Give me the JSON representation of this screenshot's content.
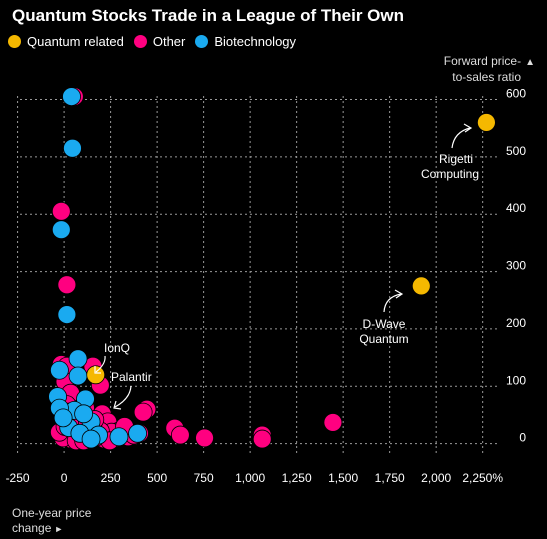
{
  "title": "Quantum Stocks Trade in a League of Their Own",
  "legend": [
    {
      "label": "Quantum related",
      "color": "#f5b800"
    },
    {
      "label": "Other",
      "color": "#ff0080"
    },
    {
      "label": "Biotechnology",
      "color": "#1aaaf0"
    }
  ],
  "y_title_line1": "Forward price-",
  "y_title_line2": "to-sales ratio",
  "y_title_arrow": "▲",
  "x_title_line1": "One-year price",
  "x_title_line2": "change",
  "x_title_arrow": "►",
  "chart_data": {
    "type": "scatter",
    "title": "Quantum Stocks Trade in a League of Their Own",
    "xlabel": "One-year price change",
    "ylabel": "Forward price-to-sales ratio",
    "xlim": [
      -280,
      2370
    ],
    "ylim": [
      -25,
      620
    ],
    "x_ticks": [
      -250,
      0,
      250,
      500,
      750,
      1000,
      1250,
      1500,
      1750,
      2000,
      2250
    ],
    "x_tick_labels": [
      "-250",
      "0",
      "250",
      "500",
      "750",
      "1,000",
      "1,250",
      "1,500",
      "1,750",
      "2,000",
      "2,250%"
    ],
    "y_ticks": [
      0,
      100,
      200,
      300,
      400,
      500,
      600
    ],
    "y_tick_labels": [
      "0",
      "100",
      "200",
      "300",
      "400",
      "500",
      "600"
    ],
    "grid": true,
    "series": [
      {
        "name": "Quantum related",
        "color": "#f5b800",
        "points": [
          {
            "x": 2270,
            "y": 560,
            "label": "Rigetti Computing"
          },
          {
            "x": 1920,
            "y": 275,
            "label": "D-Wave Quantum"
          },
          {
            "x": 170,
            "y": 120,
            "label": "IonQ"
          }
        ]
      },
      {
        "name": "Other",
        "color": "#ff0080",
        "points": [
          {
            "x": 55,
            "y": 605
          },
          {
            "x": -15,
            "y": 405
          },
          {
            "x": 15,
            "y": 277
          },
          {
            "x": -15,
            "y": 138
          },
          {
            "x": 15,
            "y": 135
          },
          {
            "x": 155,
            "y": 135
          },
          {
            "x": 5,
            "y": 108
          },
          {
            "x": 195,
            "y": 102
          },
          {
            "x": 35,
            "y": 88
          },
          {
            "x": 15,
            "y": 68
          },
          {
            "x": 115,
            "y": 62
          },
          {
            "x": 205,
            "y": 52
          },
          {
            "x": 235,
            "y": 38
          },
          {
            "x": 445,
            "y": 60
          },
          {
            "x": 425,
            "y": 55
          },
          {
            "x": 595,
            "y": 27
          },
          {
            "x": 625,
            "y": 15
          },
          {
            "x": 755,
            "y": 10
          },
          {
            "x": 1065,
            "y": 15
          },
          {
            "x": 1065,
            "y": 8
          },
          {
            "x": 1445,
            "y": 37
          },
          {
            "x": 345,
            "y": 12
          },
          {
            "x": 295,
            "y": 22
          },
          {
            "x": 275,
            "y": 10
          },
          {
            "x": 255,
            "y": 20
          },
          {
            "x": 215,
            "y": 8
          },
          {
            "x": 195,
            "y": 22
          },
          {
            "x": 175,
            "y": 12
          },
          {
            "x": 155,
            "y": 28
          },
          {
            "x": 135,
            "y": 8
          },
          {
            "x": 115,
            "y": 18
          },
          {
            "x": 95,
            "y": 30
          },
          {
            "x": 75,
            "y": 12
          },
          {
            "x": 55,
            "y": 22
          },
          {
            "x": 35,
            "y": 8
          },
          {
            "x": 15,
            "y": 18
          },
          {
            "x": -5,
            "y": 10
          },
          {
            "x": -25,
            "y": 20
          },
          {
            "x": 45,
            "y": 45
          },
          {
            "x": 85,
            "y": 40
          },
          {
            "x": 125,
            "y": 35
          },
          {
            "x": 165,
            "y": 42
          },
          {
            "x": 375,
            "y": 15
          },
          {
            "x": 405,
            "y": 18
          },
          {
            "x": 325,
            "y": 30
          },
          {
            "x": 65,
            "y": 5
          },
          {
            "x": 105,
            "y": 5
          },
          {
            "x": 245,
            "y": 5
          },
          {
            "x": 5,
            "y": 30
          },
          {
            "x": 25,
            "y": 55
          }
        ]
      },
      {
        "name": "Biotechnology",
        "color": "#1aaaf0",
        "points": [
          {
            "x": 40,
            "y": 605
          },
          {
            "x": 45,
            "y": 515
          },
          {
            "x": -15,
            "y": 373
          },
          {
            "x": 15,
            "y": 225
          },
          {
            "x": 75,
            "y": 148
          },
          {
            "x": -25,
            "y": 128
          },
          {
            "x": 75,
            "y": 118
          },
          {
            "x": -35,
            "y": 82
          },
          {
            "x": 115,
            "y": 78
          },
          {
            "x": 55,
            "y": 58
          },
          {
            "x": -25,
            "y": 62
          },
          {
            "x": 145,
            "y": 38
          },
          {
            "x": 25,
            "y": 28
          },
          {
            "x": 85,
            "y": 18
          },
          {
            "x": 185,
            "y": 15
          },
          {
            "x": 295,
            "y": 12
          },
          {
            "x": 395,
            "y": 18
          },
          {
            "x": 145,
            "y": 8
          },
          {
            "x": -5,
            "y": 45
          },
          {
            "x": 105,
            "y": 52
          }
        ]
      }
    ]
  },
  "annotations": {
    "rigetti_line1": "Rigetti",
    "rigetti_line2": "Computing",
    "dwave_line1": "D-Wave",
    "dwave_line2": "Quantum",
    "ionq": "IonQ",
    "palantir": "Palantir"
  }
}
